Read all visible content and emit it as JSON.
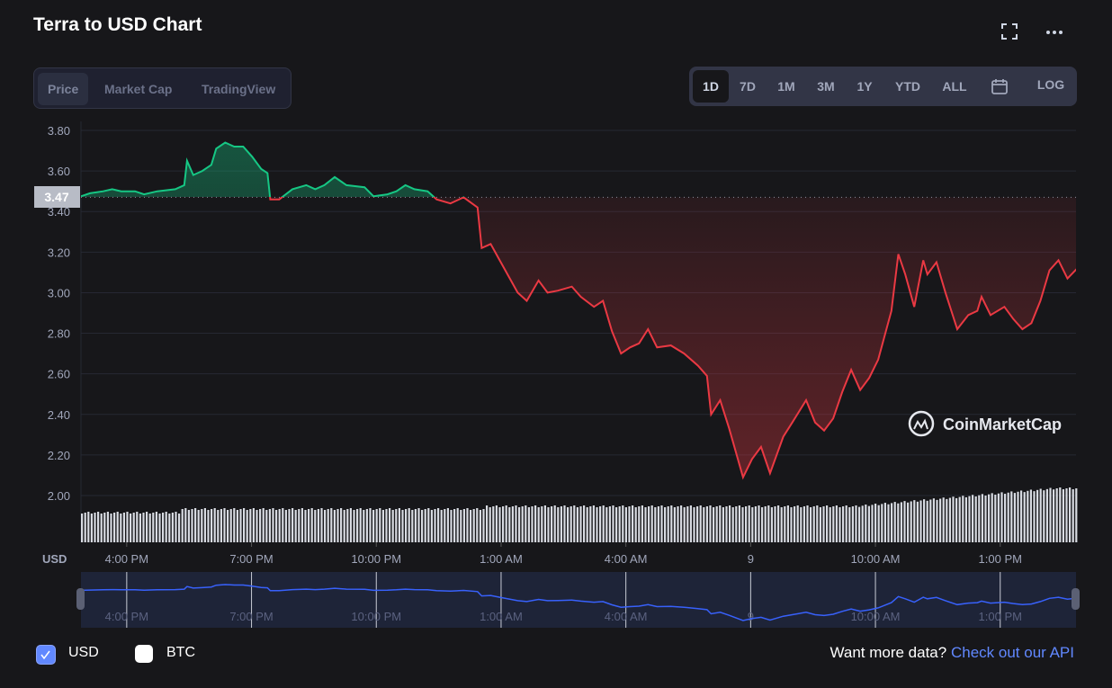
{
  "title": "Terra to USD Chart",
  "icons": {
    "fullscreen": "fullscreen-icon",
    "more": "more-icon",
    "calendar": "calendar-icon"
  },
  "tabs": [
    {
      "label": "Price",
      "active": true
    },
    {
      "label": "Market Cap"
    },
    {
      "label": "TradingView"
    }
  ],
  "ranges": [
    {
      "label": "1D",
      "active": true
    },
    {
      "label": "7D"
    },
    {
      "label": "1M"
    },
    {
      "label": "3M"
    },
    {
      "label": "1Y"
    },
    {
      "label": "YTD"
    },
    {
      "label": "ALL"
    }
  ],
  "log_label": "LOG",
  "watermark": "CoinMarketCap",
  "currency_label": "USD",
  "legend": [
    {
      "label": "USD",
      "checked": true
    },
    {
      "label": "BTC",
      "checked": false
    }
  ],
  "api": {
    "text": "Want more data?",
    "link": "Check out our API"
  },
  "colors": {
    "up": "#16c784",
    "down": "#ea3943",
    "navigator": "#3861fb",
    "checkbox": "#6188ff"
  },
  "chart_data": {
    "type": "line",
    "reference_value": 3.47,
    "reference_label": "3.47",
    "ylim": [
      2.0,
      3.8
    ],
    "y_ticks": [
      "3.80",
      "3.60",
      "3.40",
      "3.20",
      "3.00",
      "2.80",
      "2.60",
      "2.40",
      "2.20",
      "2.00"
    ],
    "x_ticks": [
      {
        "time": "16:00",
        "label": "4:00 PM"
      },
      {
        "time": "19:00",
        "label": "7:00 PM"
      },
      {
        "time": "22:00",
        "label": "10:00 PM"
      },
      {
        "time": "01:00",
        "label": "1:00 AM"
      },
      {
        "time": "04:00",
        "label": "4:00 AM"
      },
      {
        "time": "07:00",
        "label": "9"
      },
      {
        "time": "10:00",
        "label": "10:00 AM"
      },
      {
        "time": "13:00",
        "label": "1:00 PM"
      }
    ],
    "grid": true,
    "volume_bars": true,
    "points": [
      [
        "14:54",
        3.475
      ],
      [
        "15:07",
        3.49
      ],
      [
        "15:26",
        3.5
      ],
      [
        "15:39",
        3.51
      ],
      [
        "15:52",
        3.5
      ],
      [
        "16:12",
        3.5
      ],
      [
        "16:25",
        3.485
      ],
      [
        "16:44",
        3.5
      ],
      [
        "17:10",
        3.51
      ],
      [
        "17:23",
        3.53
      ],
      [
        "17:27",
        3.65
      ],
      [
        "17:36",
        3.58
      ],
      [
        "17:49",
        3.6
      ],
      [
        "18:02",
        3.63
      ],
      [
        "18:09",
        3.71
      ],
      [
        "18:22",
        3.74
      ],
      [
        "18:35",
        3.72
      ],
      [
        "18:48",
        3.72
      ],
      [
        "19:01",
        3.67
      ],
      [
        "19:14",
        3.61
      ],
      [
        "19:23",
        3.59
      ],
      [
        "19:27",
        3.46
      ],
      [
        "19:40",
        3.46
      ],
      [
        "19:59",
        3.51
      ],
      [
        "20:19",
        3.53
      ],
      [
        "20:32",
        3.51
      ],
      [
        "20:45",
        3.53
      ],
      [
        "21:00",
        3.57
      ],
      [
        "21:17",
        3.53
      ],
      [
        "21:43",
        3.52
      ],
      [
        "21:56",
        3.475
      ],
      [
        "22:16",
        3.485
      ],
      [
        "22:29",
        3.5
      ],
      [
        "22:42",
        3.53
      ],
      [
        "22:55",
        3.51
      ],
      [
        "23:14",
        3.5
      ],
      [
        "23:27",
        3.46
      ],
      [
        "23:47",
        3.44
      ],
      [
        "00:06",
        3.47
      ],
      [
        "00:26",
        3.42
      ],
      [
        "00:32",
        3.22
      ],
      [
        "00:45",
        3.24
      ],
      [
        "00:58",
        3.16
      ],
      [
        "01:24",
        3.0
      ],
      [
        "01:37",
        2.96
      ],
      [
        "01:54",
        3.06
      ],
      [
        "02:07",
        3.0
      ],
      [
        "02:22",
        3.01
      ],
      [
        "02:42",
        3.03
      ],
      [
        "02:55",
        2.98
      ],
      [
        "03:14",
        2.93
      ],
      [
        "03:27",
        2.96
      ],
      [
        "03:40",
        2.81
      ],
      [
        "03:53",
        2.7
      ],
      [
        "04:06",
        2.73
      ],
      [
        "04:19",
        2.75
      ],
      [
        "04:32",
        2.82
      ],
      [
        "04:45",
        2.73
      ],
      [
        "05:05",
        2.74
      ],
      [
        "05:24",
        2.7
      ],
      [
        "05:44",
        2.64
      ],
      [
        "05:57",
        2.59
      ],
      [
        "06:03",
        2.4
      ],
      [
        "06:16",
        2.47
      ],
      [
        "06:29",
        2.33
      ],
      [
        "06:49",
        2.09
      ],
      [
        "07:02",
        2.18
      ],
      [
        "07:15",
        2.24
      ],
      [
        "07:28",
        2.11
      ],
      [
        "07:47",
        2.29
      ],
      [
        "08:00",
        2.36
      ],
      [
        "08:20",
        2.47
      ],
      [
        "08:33",
        2.36
      ],
      [
        "08:46",
        2.32
      ],
      [
        "08:59",
        2.38
      ],
      [
        "09:12",
        2.51
      ],
      [
        "09:25",
        2.62
      ],
      [
        "09:38",
        2.52
      ],
      [
        "09:51",
        2.58
      ],
      [
        "10:04",
        2.67
      ],
      [
        "10:23",
        2.91
      ],
      [
        "10:33",
        3.19
      ],
      [
        "10:43",
        3.09
      ],
      [
        "10:56",
        2.93
      ],
      [
        "11:09",
        3.16
      ],
      [
        "11:15",
        3.09
      ],
      [
        "11:28",
        3.15
      ],
      [
        "11:41",
        3.0
      ],
      [
        "11:58",
        2.82
      ],
      [
        "12:14",
        2.89
      ],
      [
        "12:27",
        2.91
      ],
      [
        "12:33",
        2.98
      ],
      [
        "12:46",
        2.89
      ],
      [
        "13:06",
        2.93
      ],
      [
        "13:19",
        2.87
      ],
      [
        "13:32",
        2.82
      ],
      [
        "13:45",
        2.85
      ],
      [
        "13:58",
        2.96
      ],
      [
        "14:11",
        3.11
      ],
      [
        "14:24",
        3.16
      ],
      [
        "14:37",
        3.07
      ],
      [
        "14:51",
        3.12
      ]
    ]
  }
}
